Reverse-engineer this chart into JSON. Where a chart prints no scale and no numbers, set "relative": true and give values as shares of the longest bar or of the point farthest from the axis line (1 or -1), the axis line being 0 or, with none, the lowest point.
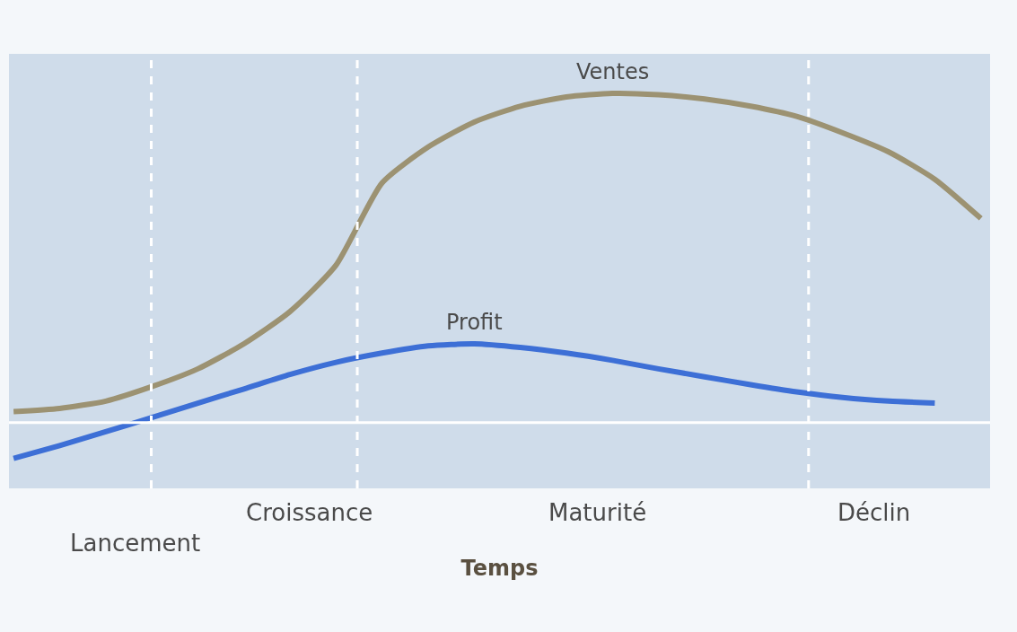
{
  "chart_data": {
    "type": "line",
    "relative": true,
    "xlabel": "Temps",
    "legend": false,
    "marker": "none",
    "line_style": "solid",
    "categories": [
      null,
      null,
      null,
      null,
      null,
      null,
      null,
      null,
      null,
      null,
      null,
      null,
      null,
      null,
      null,
      null,
      null,
      null,
      null,
      null,
      null,
      null
    ],
    "series": [
      {
        "name": "Ventes",
        "color": "#9c9272",
        "values": [
          0.033,
          0.043,
          0.065,
          0.109,
          0.163,
          0.239,
          0.337,
          0.478,
          0.728,
          0.837,
          0.913,
          0.961,
          0.989,
          1,
          0.996,
          0.983,
          0.961,
          0.93,
          0.88,
          0.822,
          0.739,
          0.62
        ]
      },
      {
        "name": "Profit",
        "color": "#3d6fd6",
        "values": [
          -0.109,
          -0.07,
          -0.028,
          0.015,
          0.059,
          0.102,
          0.146,
          0.183,
          0.211,
          0.233,
          0.239,
          0.228,
          0.211,
          0.189,
          0.163,
          0.139,
          0.115,
          0.093,
          0.076,
          0.065,
          0.059,
          null
        ]
      }
    ],
    "annotations": [
      "Lancement",
      "Croissance",
      "Maturité",
      "Déclin"
    ]
  }
}
